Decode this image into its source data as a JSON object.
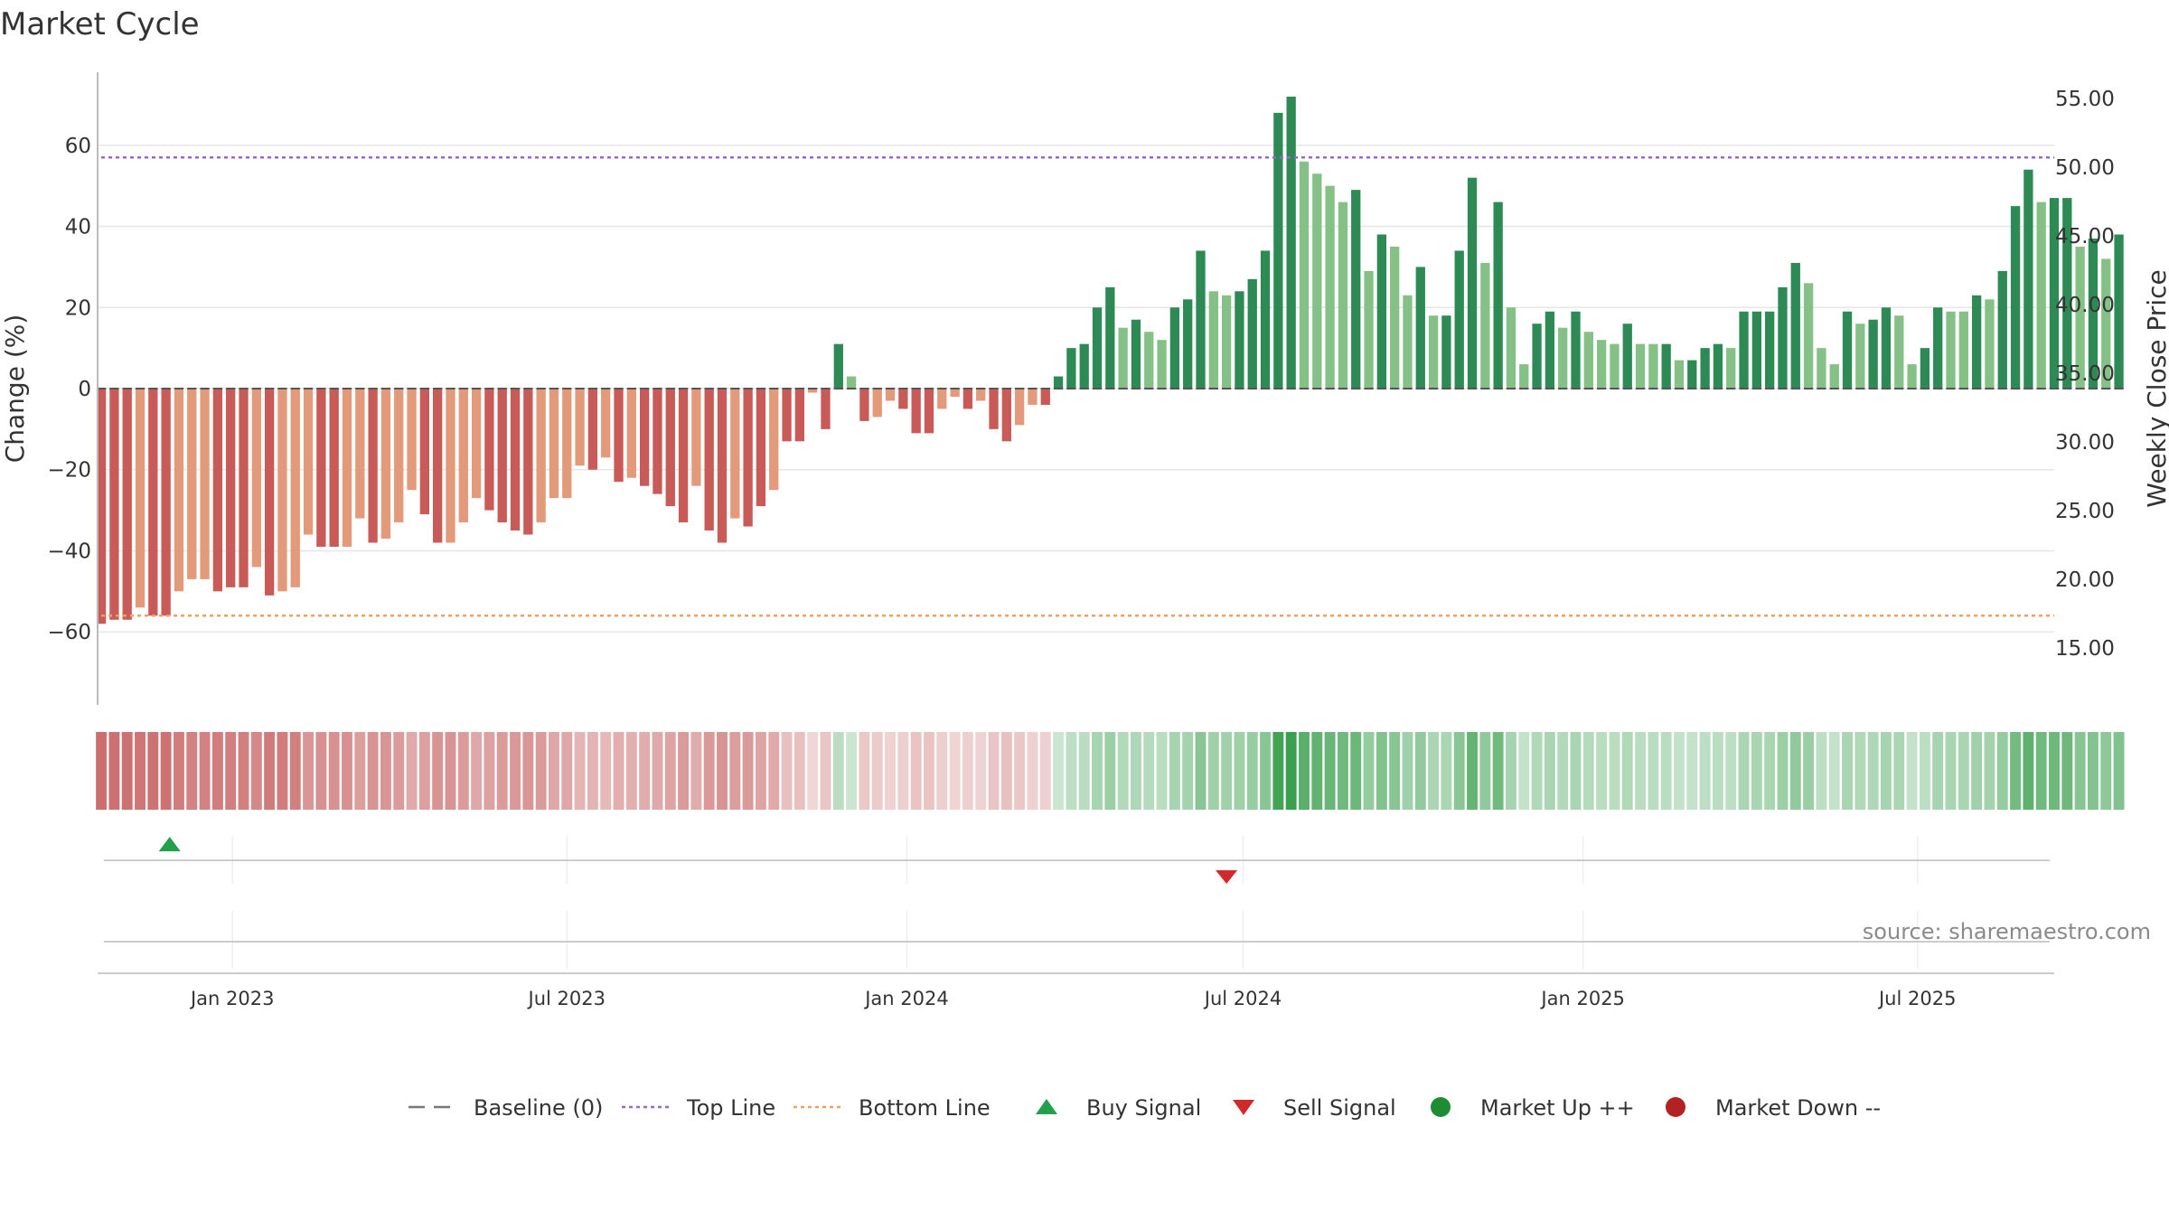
{
  "title": "Market Cycle",
  "source": "source: sharemaestro.com",
  "chart_data": {
    "type": "bar",
    "title": "Market Cycle",
    "xlabel": "",
    "ylabel": "Change (%)",
    "y2label": "Weekly Close Price",
    "ylim": [
      -78,
      78
    ],
    "y_ticks": [
      60,
      40,
      20,
      0,
      -20,
      -40,
      -60
    ],
    "y_tick_labels": [
      "60",
      "40",
      "20",
      "0",
      "−20",
      "−40",
      "−60"
    ],
    "y2_ticks": [
      55,
      50,
      45,
      40,
      35,
      30,
      25,
      20,
      15
    ],
    "y2_tick_labels": [
      "55.00",
      "50.00",
      "45.00",
      "40.00",
      "35.00",
      "30.00",
      "25.00",
      "20.00",
      "15.00"
    ],
    "x_range": [
      "2022-10-20",
      "2025-09-13"
    ],
    "x_ticks": [
      "2023-01-01",
      "2023-07-01",
      "2024-01-01",
      "2024-07-01",
      "2025-01-01",
      "2025-07-01"
    ],
    "x_tick_labels": [
      "Jan 2023",
      "Jul 2023",
      "Jan 2024",
      "Jul 2024",
      "Jan 2025",
      "Jul 2025"
    ],
    "start_week": "2022-10-22",
    "week_step_days": 7,
    "values": [
      -58,
      -57,
      -57,
      -54,
      -56,
      -56,
      -50,
      -47,
      -47,
      -50,
      -49,
      -49,
      -44,
      -51,
      -50,
      -49,
      -36,
      -39,
      -39,
      -39,
      -32,
      -38,
      -37,
      -33,
      -25,
      -31,
      -38,
      -38,
      -33,
      -27,
      -30,
      -33,
      -35,
      -36,
      -33,
      -27,
      -27,
      -19,
      -20,
      -17,
      -23,
      -22,
      -24,
      -26,
      -29,
      -33,
      -24,
      -35,
      -38,
      -32,
      -34,
      -29,
      -25,
      -13,
      -13,
      -1,
      -10,
      11,
      3,
      -8,
      -7,
      -3,
      -5,
      -11,
      -11,
      -5,
      -2,
      -5,
      -3,
      -10,
      -13,
      -9,
      -4,
      -4,
      3,
      10,
      11,
      20,
      25,
      15,
      17,
      14,
      12,
      20,
      22,
      34,
      24,
      23,
      24,
      27,
      34,
      68,
      72,
      56,
      53,
      50,
      46,
      49,
      29,
      38,
      35,
      23,
      30,
      18,
      18,
      34,
      52,
      31,
      46,
      20,
      6,
      16,
      19,
      15,
      19,
      14,
      12,
      11,
      16,
      11,
      11,
      11,
      7,
      7,
      10,
      11,
      10,
      19,
      19,
      19,
      25,
      31,
      26,
      10,
      6,
      19,
      16,
      17,
      20,
      18,
      6,
      10,
      20,
      19,
      19,
      23,
      22,
      29,
      45,
      54,
      46,
      47,
      47,
      35,
      37,
      32,
      38
    ],
    "bar_shade": [
      "d",
      "d",
      "d",
      "l",
      "d",
      "d",
      "l",
      "l",
      "l",
      "d",
      "d",
      "d",
      "l",
      "d",
      "l",
      "l",
      "l",
      "d",
      "d",
      "l",
      "l",
      "d",
      "l",
      "l",
      "l",
      "d",
      "d",
      "l",
      "l",
      "l",
      "d",
      "d",
      "d",
      "d",
      "l",
      "l",
      "l",
      "l",
      "d",
      "l",
      "d",
      "l",
      "d",
      "d",
      "d",
      "d",
      "l",
      "d",
      "d",
      "l",
      "d",
      "d",
      "l",
      "d",
      "d",
      "l",
      "d",
      "d",
      "l",
      "d",
      "l",
      "l",
      "d",
      "d",
      "d",
      "l",
      "l",
      "d",
      "l",
      "d",
      "d",
      "l",
      "l",
      "d",
      "d",
      "d",
      "d",
      "d",
      "d",
      "l",
      "d",
      "l",
      "l",
      "d",
      "d",
      "d",
      "l",
      "l",
      "d",
      "d",
      "d",
      "d",
      "d",
      "l",
      "l",
      "l",
      "l",
      "d",
      "l",
      "d",
      "l",
      "l",
      "d",
      "l",
      "d",
      "d",
      "d",
      "l",
      "d",
      "l",
      "l",
      "d",
      "d",
      "l",
      "d",
      "l",
      "l",
      "l",
      "d",
      "l",
      "l",
      "d",
      "l",
      "d",
      "d",
      "d",
      "l",
      "d",
      "d",
      "d",
      "d",
      "d",
      "l",
      "l",
      "l",
      "d",
      "l",
      "d",
      "d",
      "l",
      "l",
      "d",
      "d",
      "l",
      "l",
      "d",
      "l",
      "d",
      "d",
      "d",
      "l",
      "d",
      "d",
      "l",
      "d",
      "l",
      "d"
    ],
    "baseline": 0,
    "top_line": 57,
    "bottom_line": -56,
    "buy_signals": [
      "2022-11-28"
    ],
    "sell_signals": [
      "2024-06-22"
    ],
    "legend": [
      {
        "label": "Baseline (0)",
        "marker": "dash",
        "color": "#777777"
      },
      {
        "label": "Top Line",
        "marker": "dotted",
        "color": "#9966cc"
      },
      {
        "label": "Bottom Line",
        "marker": "dotted",
        "color": "#f0a060"
      },
      {
        "label": "Buy Signal",
        "marker": "triangle-up",
        "color": "#22a04b"
      },
      {
        "label": "Sell Signal",
        "marker": "triangle-down",
        "color": "#d12a2a"
      },
      {
        "label": "Market Up ++",
        "marker": "circle",
        "color": "#1e8c32"
      },
      {
        "label": "Market Down --",
        "marker": "circle",
        "color": "#b22222"
      }
    ],
    "grid": true,
    "legend_position": "bottom-center"
  },
  "colors": {
    "neg_dark": "#c85a58",
    "neg_light": "#e39a7a",
    "pos_dark": "#2e8a54",
    "pos_light": "#85c186",
    "heat_neg": "#bf4c4c",
    "heat_pos": "#2f9a44",
    "grid": "#e6e6e6",
    "top_line": "#9966cc",
    "bottom_line": "#f0a060",
    "buy": "#22a04b",
    "sell": "#d12a2a"
  }
}
